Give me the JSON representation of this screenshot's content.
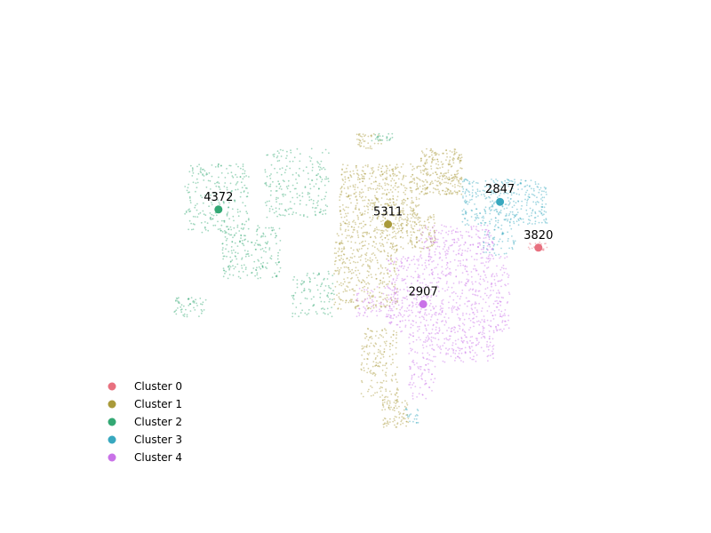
{
  "chart_data": {
    "type": "scatter",
    "title": "",
    "xlabel": "",
    "ylabel": "",
    "axes_visible": false,
    "grid": false,
    "legend_position": "lower-left",
    "xlim": [
      0,
      100
    ],
    "ylim": [
      0,
      100
    ],
    "series": [
      {
        "name": "Cluster 0",
        "color": "#e8707f",
        "centroid": {
          "x": 84.3,
          "y": 56.1,
          "label": "3820"
        },
        "regions": [
          {
            "x": [
              82,
              86
            ],
            "y": [
              55,
              57.5
            ],
            "n": 22
          }
        ]
      },
      {
        "name": "Cluster 1",
        "color": "#a99a3a",
        "centroid": {
          "x": 56.1,
          "y": 62.2,
          "label": "5311"
        },
        "regions": [
          {
            "x": [
              47,
              62
            ],
            "y": [
              60,
              78
            ],
            "n": 520
          },
          {
            "x": [
              62,
              70
            ],
            "y": [
              70,
              82
            ],
            "n": 260
          },
          {
            "x": [
              46,
              58
            ],
            "y": [
              40,
              60
            ],
            "n": 380
          },
          {
            "x": [
              58,
              65
            ],
            "y": [
              55,
              65
            ],
            "n": 120
          },
          {
            "x": [
              51,
              58
            ],
            "y": [
              16,
              35
            ],
            "n": 180
          },
          {
            "x": [
              55,
              60
            ],
            "y": [
              9,
              16
            ],
            "n": 80
          },
          {
            "x": [
              50,
              55
            ],
            "y": [
              82,
              86
            ],
            "n": 40
          }
        ]
      },
      {
        "name": "Cluster 2",
        "color": "#33a874",
        "centroid": {
          "x": 24.3,
          "y": 66.1,
          "label": "4372"
        },
        "regions": [
          {
            "x": [
              18,
              30
            ],
            "y": [
              60,
              78
            ],
            "n": 230
          },
          {
            "x": [
              25,
              36
            ],
            "y": [
              48,
              62
            ],
            "n": 200
          },
          {
            "x": [
              33,
              45
            ],
            "y": [
              64,
              82
            ],
            "n": 210
          },
          {
            "x": [
              38,
              46
            ],
            "y": [
              38,
              50
            ],
            "n": 100
          },
          {
            "x": [
              16,
              22
            ],
            "y": [
              38,
              43
            ],
            "n": 55
          },
          {
            "x": [
              53,
              57
            ],
            "y": [
              84,
              86
            ],
            "n": 25
          }
        ]
      },
      {
        "name": "Cluster 3",
        "color": "#38a8bf",
        "centroid": {
          "x": 77.1,
          "y": 68.1,
          "label": "2847"
        },
        "regions": [
          {
            "x": [
              70,
              86
            ],
            "y": [
              62,
              74
            ],
            "n": 360
          },
          {
            "x": [
              74,
              80
            ],
            "y": [
              54,
              62
            ],
            "n": 60
          },
          {
            "x": [
              59,
              62
            ],
            "y": [
              10,
              14
            ],
            "n": 20
          }
        ]
      },
      {
        "name": "Cluster 4",
        "color": "#c972e8",
        "centroid": {
          "x": 62.7,
          "y": 41.3,
          "label": "2907"
        },
        "regions": [
          {
            "x": [
              56,
              79
            ],
            "y": [
              34,
              54
            ],
            "n": 640
          },
          {
            "x": [
              62,
              76
            ],
            "y": [
              54,
              62
            ],
            "n": 180
          },
          {
            "x": [
              60,
              76
            ],
            "y": [
              26,
              34
            ],
            "n": 190
          },
          {
            "x": [
              50,
              58
            ],
            "y": [
              38,
              46
            ],
            "n": 80
          },
          {
            "x": [
              60,
              65
            ],
            "y": [
              16,
              26
            ],
            "n": 60
          }
        ]
      }
    ]
  }
}
